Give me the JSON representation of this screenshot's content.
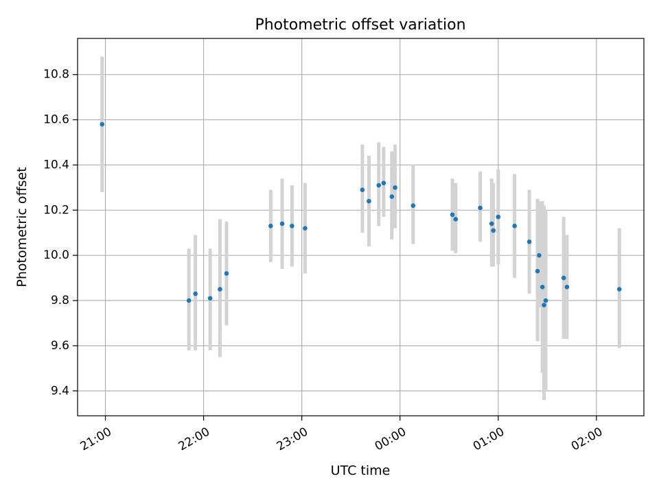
{
  "chart_data": {
    "type": "scatter",
    "title": "Photometric offset variation",
    "xlabel": "UTC time",
    "ylabel": "Photometric offset",
    "xlim": [
      "20:43",
      "02:29"
    ],
    "ylim": [
      9.29,
      10.96
    ],
    "grid": true,
    "x_ticks": [
      "21:00",
      "22:00",
      "23:00",
      "00:00",
      "01:00",
      "02:00"
    ],
    "y_ticks": [
      "9.4",
      "9.6",
      "9.8",
      "10.0",
      "10.2",
      "10.4",
      "10.6",
      "10.8"
    ],
    "colors": {
      "point": "#1f77b4",
      "errorbar": "#d3d3d3",
      "grid": "#b0b0b0"
    },
    "points": [
      {
        "x": "20:58",
        "y": 10.58,
        "ylow": 10.28,
        "yhigh": 10.88
      },
      {
        "x": "21:51",
        "y": 9.8,
        "ylow": 9.58,
        "yhigh": 10.03
      },
      {
        "x": "21:55",
        "y": 9.83,
        "ylow": 9.58,
        "yhigh": 10.09
      },
      {
        "x": "22:04",
        "y": 9.81,
        "ylow": 9.58,
        "yhigh": 10.03
      },
      {
        "x": "22:10",
        "y": 9.85,
        "ylow": 9.55,
        "yhigh": 10.16
      },
      {
        "x": "22:14",
        "y": 9.92,
        "ylow": 9.69,
        "yhigh": 10.15
      },
      {
        "x": "22:41",
        "y": 10.13,
        "ylow": 9.97,
        "yhigh": 10.29
      },
      {
        "x": "22:48",
        "y": 10.14,
        "ylow": 9.94,
        "yhigh": 10.34
      },
      {
        "x": "22:54",
        "y": 10.13,
        "ylow": 9.95,
        "yhigh": 10.31
      },
      {
        "x": "23:02",
        "y": 10.12,
        "ylow": 9.92,
        "yhigh": 10.32
      },
      {
        "x": "23:37",
        "y": 10.29,
        "ylow": 10.1,
        "yhigh": 10.49
      },
      {
        "x": "23:41",
        "y": 10.24,
        "ylow": 10.04,
        "yhigh": 10.44
      },
      {
        "x": "23:47",
        "y": 10.31,
        "ylow": 10.13,
        "yhigh": 10.5
      },
      {
        "x": "23:50",
        "y": 10.32,
        "ylow": 10.17,
        "yhigh": 10.48
      },
      {
        "x": "23:55",
        "y": 10.26,
        "ylow": 10.07,
        "yhigh": 10.46
      },
      {
        "x": "23:57",
        "y": 10.3,
        "ylow": 10.12,
        "yhigh": 10.49
      },
      {
        "x": "00:08",
        "y": 10.22,
        "ylow": 10.05,
        "yhigh": 10.4
      },
      {
        "x": "00:32",
        "y": 10.18,
        "ylow": 10.02,
        "yhigh": 10.34
      },
      {
        "x": "00:34",
        "y": 10.16,
        "ylow": 10.01,
        "yhigh": 10.32
      },
      {
        "x": "00:49",
        "y": 10.21,
        "ylow": 10.06,
        "yhigh": 10.37
      },
      {
        "x": "00:56",
        "y": 10.14,
        "ylow": 9.95,
        "yhigh": 10.34
      },
      {
        "x": "00:57",
        "y": 10.11,
        "ylow": 9.95,
        "yhigh": 10.32
      },
      {
        "x": "01:00",
        "y": 10.17,
        "ylow": 9.96,
        "yhigh": 10.38
      },
      {
        "x": "01:10",
        "y": 10.13,
        "ylow": 9.9,
        "yhigh": 10.36
      },
      {
        "x": "01:19",
        "y": 10.06,
        "ylow": 9.83,
        "yhigh": 10.29
      },
      {
        "x": "01:24",
        "y": 9.93,
        "ylow": 9.62,
        "yhigh": 10.25
      },
      {
        "x": "01:25",
        "y": 10.0,
        "ylow": 9.77,
        "yhigh": 10.24
      },
      {
        "x": "01:27",
        "y": 9.86,
        "ylow": 9.48,
        "yhigh": 10.24
      },
      {
        "x": "01:28",
        "y": 9.78,
        "ylow": 9.36,
        "yhigh": 10.22
      },
      {
        "x": "01:29",
        "y": 9.8,
        "ylow": 9.4,
        "yhigh": 10.2
      },
      {
        "x": "01:40",
        "y": 9.9,
        "ylow": 9.63,
        "yhigh": 10.17
      },
      {
        "x": "01:42",
        "y": 9.86,
        "ylow": 9.63,
        "yhigh": 10.09
      },
      {
        "x": "02:14",
        "y": 9.85,
        "ylow": 9.59,
        "yhigh": 10.12
      }
    ]
  }
}
